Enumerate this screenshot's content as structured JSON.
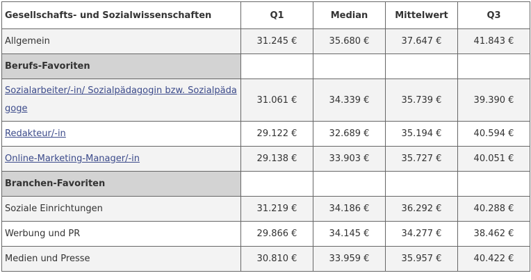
{
  "table": {
    "header": [
      "Gesellschafts- und Sozialwissenschaften",
      "Q1",
      "Median",
      "Mittelwert",
      "Q3"
    ],
    "rows": [
      [
        "Allgemein",
        "31.245 €",
        "35.680 €",
        "37.647 €",
        "41.843 €"
      ],
      [
        "Berufs-Favoriten"
      ],
      [
        "Sozialarbeiter/-in/ Sozialpädagogin bzw. Sozialpädagoge",
        "31.061 €",
        "34.339 €",
        "35.739 €",
        "39.390 €"
      ],
      [
        "Redakteur/-in",
        "29.122 €",
        "32.689 €",
        "35.194 €",
        "40.594 €"
      ],
      [
        "Online-Marketing-Manager/-in",
        "29.138 €",
        "33.903 €",
        "35.727 €",
        "40.051 €"
      ],
      [
        "Branchen-Favoriten"
      ],
      [
        "Soziale Einrichtungen",
        "31.219 €",
        "34.186 €",
        "36.292 €",
        "40.288 €"
      ],
      [
        "Werbung und PR",
        "29.866 €",
        "34.145 €",
        "34.277 €",
        "38.462 €"
      ],
      [
        "Medien und Presse",
        "30.810 €",
        "33.959 €",
        "35.957 €",
        "40.422 €"
      ]
    ]
  }
}
